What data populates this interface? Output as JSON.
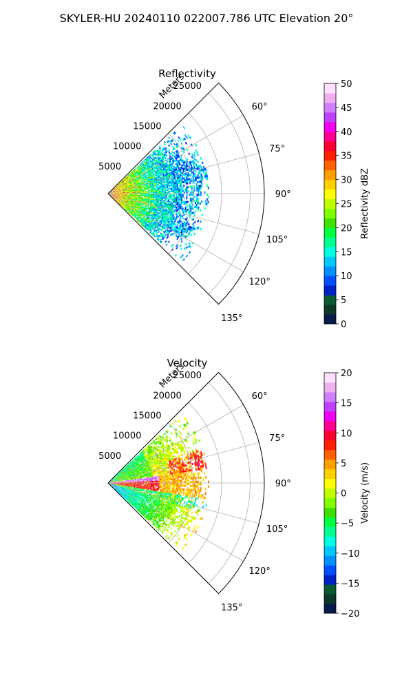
{
  "suptitle": "SKYLER-HU  20240110  022007.786 UTC Elevation 20°",
  "chart_data": [
    {
      "type": "heatmap",
      "projection": "polar-sector",
      "title": "Reflectivity",
      "radial_label": "Meters",
      "r_ticks": [
        5000,
        10000,
        15000,
        20000,
        25000
      ],
      "r_tick_labels": [
        "5000",
        "10000",
        "15000",
        "20000",
        "25000"
      ],
      "r_max": 27500,
      "theta_range_deg": [
        45,
        135
      ],
      "theta_ticks_deg": [
        60,
        75,
        90,
        105,
        120,
        135
      ],
      "theta_tick_labels": [
        "60°",
        "75°",
        "90°",
        "105°",
        "120°",
        "135°"
      ],
      "grid": true,
      "colorbar": {
        "label": "Reflectivity dBZ",
        "min": 0,
        "max": 50,
        "ticks": [
          0,
          5,
          10,
          15,
          20,
          25,
          30,
          35,
          40,
          45,
          50
        ],
        "tick_labels": [
          "0",
          "5",
          "10",
          "15",
          "20",
          "25",
          "30",
          "35",
          "40",
          "45",
          "50"
        ],
        "colors": [
          "#0a1a4a",
          "#0b3a28",
          "#0a5a32",
          "#0020c8",
          "#0050ff",
          "#0090ff",
          "#00c8ff",
          "#00ffe0",
          "#00ff90",
          "#00ff40",
          "#40e000",
          "#80ff00",
          "#c0ff00",
          "#ffff00",
          "#ffd000",
          "#ffa000",
          "#ff6000",
          "#ff2000",
          "#ff0030",
          "#ff0090",
          "#f000f0",
          "#c040ff",
          "#d080ff",
          "#f0b0f0",
          "#ffe0ff"
        ]
      }
    },
    {
      "type": "heatmap",
      "projection": "polar-sector",
      "title": "Velocity",
      "radial_label": "Meters",
      "r_ticks": [
        5000,
        10000,
        15000,
        20000,
        25000
      ],
      "r_tick_labels": [
        "5000",
        "10000",
        "15000",
        "20000",
        "25000"
      ],
      "r_max": 27500,
      "theta_range_deg": [
        45,
        135
      ],
      "theta_ticks_deg": [
        60,
        75,
        90,
        105,
        120,
        135
      ],
      "theta_tick_labels": [
        "60°",
        "75°",
        "90°",
        "105°",
        "120°",
        "135°"
      ],
      "grid": true,
      "colorbar": {
        "label": "Velocity (m/s)",
        "min": -20,
        "max": 20,
        "ticks": [
          -20,
          -15,
          -10,
          -5,
          0,
          5,
          10,
          15,
          20
        ],
        "tick_labels": [
          "−20",
          "−15",
          "−10",
          "−5",
          "0",
          "5",
          "10",
          "15",
          "20"
        ],
        "colors": [
          "#0a1a4a",
          "#0b3a28",
          "#0a5a32",
          "#0020c8",
          "#0050ff",
          "#0090ff",
          "#00c8ff",
          "#00ffe0",
          "#00ff90",
          "#00ff40",
          "#40e000",
          "#80ff00",
          "#c0ff00",
          "#ffff00",
          "#ffd000",
          "#ffa000",
          "#ff6000",
          "#ff2000",
          "#ff0030",
          "#ff0090",
          "#f000f0",
          "#c040ff",
          "#d080ff",
          "#f0b0f0",
          "#ffe0ff"
        ]
      }
    }
  ]
}
